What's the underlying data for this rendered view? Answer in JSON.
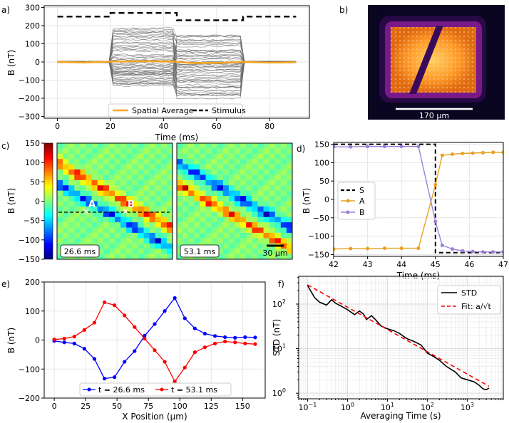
{
  "figure": {
    "panel_labels": [
      "a)",
      "b)",
      "c)",
      "d)",
      "e)",
      "f)"
    ]
  },
  "chart_data": [
    {
      "panel": "a",
      "type": "line",
      "xlabel": "Time (ms)",
      "ylabel": "B (nT)",
      "xlim": [
        -5,
        95
      ],
      "ylim": [
        -310,
        310
      ],
      "xticks": [
        0,
        20,
        40,
        60,
        80
      ],
      "yticks": [
        -300,
        -200,
        -100,
        0,
        100,
        200,
        300
      ],
      "series": [
        {
          "name": "Spatial Average",
          "color": "#f5a623",
          "x": [
            0,
            10,
            20,
            30,
            40,
            45,
            50,
            60,
            70,
            80,
            90
          ],
          "y": [
            0,
            -3,
            2,
            4,
            3,
            2,
            -6,
            -5,
            0,
            -4,
            -2
          ]
        },
        {
          "name": "Stimulus",
          "color": "#000000",
          "style": "dashed",
          "x": [
            0,
            20,
            20,
            45,
            45,
            70,
            70,
            90
          ],
          "y": [
            250,
            250,
            270,
            270,
            230,
            230,
            250,
            250
          ]
        }
      ],
      "trace_bundle": {
        "segments": [
          {
            "x": [
              20,
              45
            ],
            "y_range": [
              -140,
              190
            ]
          },
          {
            "x": [
              45,
              70
            ],
            "y_range": [
              -200,
              160
            ]
          }
        ],
        "baseline_noise_nT": 5
      }
    },
    {
      "panel": "b",
      "type": "image",
      "scalebar_label": "170 μm"
    },
    {
      "panel": "c",
      "type": "heatmap",
      "ylabel": "B (nT)",
      "colorbar_range": [
        -150,
        150
      ],
      "colorbar_ticks": [
        150,
        100,
        50,
        0,
        -50,
        -100,
        -150
      ],
      "colormap": "jet",
      "frames": [
        {
          "time_label": "26.6 ms"
        },
        {
          "time_label": "53.1 ms"
        }
      ],
      "markers": [
        "A",
        "B"
      ],
      "scalebar_label": "30 μm"
    },
    {
      "panel": "d",
      "type": "line",
      "xlabel": "Time (ms)",
      "ylabel": "B (nT)",
      "xlim": [
        42,
        47
      ],
      "ylim": [
        -155,
        155
      ],
      "xticks": [
        42,
        43,
        44,
        45,
        46,
        47
      ],
      "yticks": [
        150,
        100,
        50,
        0,
        -50,
        -100,
        -150
      ],
      "series": [
        {
          "name": "S",
          "color": "#000000",
          "style": "dashed",
          "markers": false,
          "x": [
            42,
            45,
            45,
            47
          ],
          "y": [
            150,
            150,
            -145,
            -145
          ]
        },
        {
          "name": "A",
          "color": "#e8a020",
          "markers": true,
          "x": [
            42,
            42.5,
            43,
            43.5,
            44,
            44.5,
            45,
            45.2,
            45.5,
            45.8,
            46.1,
            46.4,
            46.7,
            47
          ],
          "y": [
            -135,
            -134,
            -134,
            -133,
            -133,
            -133,
            40,
            120,
            123,
            125,
            126,
            127,
            128,
            128
          ]
        },
        {
          "name": "B",
          "color": "#9b80d8",
          "markers": true,
          "x": [
            42,
            42.5,
            43,
            43.5,
            44,
            44.5,
            45,
            45.2,
            45.5,
            45.8,
            46.1,
            46.4,
            46.7,
            47
          ],
          "y": [
            143,
            143,
            144,
            144,
            144,
            144,
            -60,
            -125,
            -135,
            -140,
            -142,
            -143,
            -143,
            -143
          ]
        }
      ]
    },
    {
      "panel": "e",
      "type": "line",
      "xlabel": "X Position (μm)",
      "ylabel": "B (nT)",
      "xlim": [
        -8,
        168
      ],
      "ylim": [
        -200,
        200
      ],
      "xticks": [
        0,
        25,
        50,
        75,
        100,
        125,
        150
      ],
      "yticks": [
        200,
        100,
        0,
        -100,
        -200
      ],
      "series": [
        {
          "name": "t = 26.6 ms",
          "color": "#0000ff",
          "x": [
            0,
            8,
            16,
            24,
            32,
            40,
            48,
            56,
            64,
            72,
            80,
            88,
            96,
            104,
            112,
            120,
            128,
            136,
            144,
            152,
            160
          ],
          "y": [
            -3,
            -8,
            -12,
            -30,
            -65,
            -133,
            -128,
            -75,
            -38,
            15,
            55,
            100,
            145,
            75,
            40,
            22,
            14,
            10,
            8,
            10,
            9
          ]
        },
        {
          "name": "t = 53.1 ms",
          "color": "#ff0000",
          "x": [
            0,
            8,
            16,
            24,
            32,
            40,
            48,
            56,
            64,
            72,
            80,
            88,
            96,
            104,
            112,
            120,
            128,
            136,
            144,
            152,
            160
          ],
          "y": [
            2,
            5,
            12,
            35,
            60,
            130,
            120,
            85,
            45,
            5,
            -35,
            -75,
            -143,
            -95,
            -42,
            -25,
            -12,
            -5,
            -8,
            -12,
            -14
          ]
        }
      ]
    },
    {
      "panel": "f",
      "type": "line",
      "scale": "log-log",
      "xlabel": "Averaging Time (s)",
      "ylabel": "STD (nT)",
      "xlim": [
        0.06,
        8000
      ],
      "ylim": [
        0.75,
        420
      ],
      "xtick_labels": [
        "10",
        "10",
        "10",
        "10",
        "10"
      ],
      "xtick_exponents": [
        "−1",
        "0",
        "1",
        "2",
        "3"
      ],
      "ytick_labels": [
        "10",
        "10",
        "10"
      ],
      "ytick_exponents": [
        "0",
        "1",
        "2"
      ],
      "series": [
        {
          "name": "STD",
          "color": "#000000",
          "x": [
            0.1,
            0.15,
            0.2,
            0.3,
            0.4,
            0.5,
            0.7,
            1,
            1.5,
            2,
            2.5,
            3,
            4,
            5,
            7,
            10,
            15,
            20,
            30,
            50,
            70,
            100,
            150,
            200,
            300,
            500,
            700,
            1000,
            1500,
            2000,
            2500,
            3000,
            3500
          ],
          "y": [
            260,
            140,
            110,
            95,
            125,
            105,
            90,
            75,
            58,
            70,
            60,
            45,
            55,
            45,
            32,
            28,
            25,
            22,
            17,
            14,
            12,
            8,
            6.5,
            5.5,
            4,
            3,
            2.2,
            2,
            1.8,
            1.5,
            1.25,
            1.2,
            1.3
          ]
        },
        {
          "name": "Fit:  a/√t",
          "color": "#ff0000",
          "style": "dashed",
          "x": [
            0.1,
            3500
          ],
          "y": [
            270,
            1.44
          ]
        }
      ]
    }
  ]
}
